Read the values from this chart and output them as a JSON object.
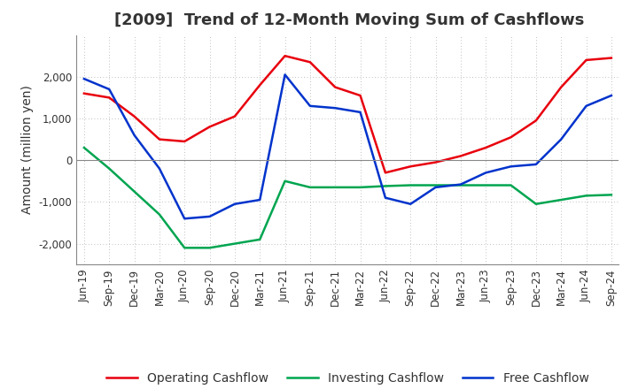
{
  "title": "[2009]  Trend of 12-Month Moving Sum of Cashflows",
  "ylabel": "Amount (million yen)",
  "xlabels": [
    "Jun-19",
    "Sep-19",
    "Dec-19",
    "Mar-20",
    "Jun-20",
    "Sep-20",
    "Dec-20",
    "Mar-21",
    "Jun-21",
    "Sep-21",
    "Dec-21",
    "Mar-22",
    "Jun-22",
    "Sep-22",
    "Dec-22",
    "Mar-23",
    "Jun-23",
    "Sep-23",
    "Dec-23",
    "Mar-24",
    "Jun-24",
    "Sep-24"
  ],
  "operating": [
    1600,
    1500,
    1050,
    500,
    450,
    800,
    1050,
    1800,
    2500,
    2350,
    1750,
    1550,
    -300,
    -150,
    -50,
    100,
    300,
    550,
    950,
    1750,
    2400,
    2450
  ],
  "investing": [
    300,
    -200,
    -750,
    -1300,
    -2100,
    -2100,
    -2000,
    -1900,
    -500,
    -650,
    -650,
    -650,
    -620,
    -600,
    -600,
    -600,
    -600,
    -600,
    -1050,
    -950,
    -850,
    -830
  ],
  "free": [
    1950,
    1700,
    600,
    -200,
    -1400,
    -1350,
    -1050,
    -950,
    2050,
    1300,
    1250,
    1150,
    -900,
    -1050,
    -650,
    -580,
    -300,
    -150,
    -100,
    500,
    1300,
    1550
  ],
  "ylim": [
    -2500,
    3000
  ],
  "yticks": [
    -2000,
    -1000,
    0,
    1000,
    2000
  ],
  "colors": {
    "operating": "#e8000d",
    "investing": "#00a550",
    "free": "#0033cc"
  },
  "legend": [
    "Operating Cashflow",
    "Investing Cashflow",
    "Free Cashflow"
  ],
  "background": "#ffffff",
  "grid_color": "#aaaaaa",
  "title_fontsize": 13,
  "label_fontsize": 10,
  "tick_fontsize": 8.5
}
